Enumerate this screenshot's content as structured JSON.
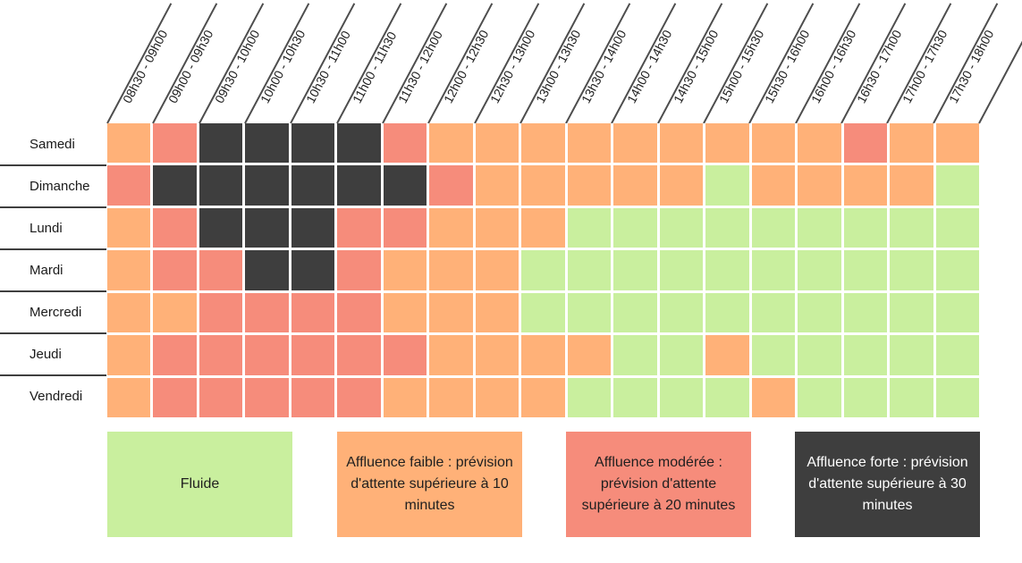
{
  "colors": {
    "fluide": "#C9EF9E",
    "faible": "#FFB178",
    "moderee": "#F68C7B",
    "forte": "#3E3E3E",
    "header_line": "#4D4D4D",
    "row_separator": "#3F3F3F",
    "text_dark": "#1F1F1F",
    "text_light": "#FFFFFF",
    "background": "#FFFFFF"
  },
  "chart_data": {
    "type": "heatmap",
    "title": "",
    "x_categories": [
      "08h30 - 09h00",
      "09h00 - 09h30",
      "09h30 - 10h00",
      "10h00 - 10h30",
      "10h30 - 11h00",
      "11h00 - 11h30",
      "11h30 - 12h00",
      "12h00 - 12h30",
      "12h30 - 13h00",
      "13h00 - 13h30",
      "13h30 - 14h00",
      "14h00 - 14h30",
      "14h30 - 15h00",
      "15h00 - 15h30",
      "15h30 - 16h00",
      "16h00 - 16h30",
      "16h30 - 17h00",
      "17h00 - 17h30",
      "17h30 - 18h00"
    ],
    "y_categories": [
      "Samedi",
      "Dimanche",
      "Lundi",
      "Mardi",
      "Mercredi",
      "Jeudi",
      "Vendredi"
    ],
    "values": [
      [
        1,
        2,
        3,
        3,
        3,
        3,
        2,
        1,
        1,
        1,
        1,
        1,
        1,
        1,
        1,
        1,
        2,
        1,
        1
      ],
      [
        2,
        3,
        3,
        3,
        3,
        3,
        3,
        2,
        1,
        1,
        1,
        1,
        1,
        0,
        1,
        1,
        1,
        1,
        0
      ],
      [
        1,
        2,
        3,
        3,
        3,
        2,
        2,
        1,
        1,
        1,
        0,
        0,
        0,
        0,
        0,
        0,
        0,
        0,
        0
      ],
      [
        1,
        2,
        2,
        3,
        3,
        2,
        1,
        1,
        1,
        0,
        0,
        0,
        0,
        0,
        0,
        0,
        0,
        0,
        0
      ],
      [
        1,
        1,
        2,
        2,
        2,
        2,
        1,
        1,
        1,
        0,
        0,
        0,
        0,
        0,
        0,
        0,
        0,
        0,
        0
      ],
      [
        1,
        2,
        2,
        2,
        2,
        2,
        2,
        1,
        1,
        1,
        1,
        0,
        0,
        1,
        0,
        0,
        0,
        0,
        0
      ],
      [
        1,
        2,
        2,
        2,
        2,
        2,
        1,
        1,
        1,
        1,
        0,
        0,
        0,
        0,
        1,
        0,
        0,
        0,
        0
      ]
    ],
    "levels": [
      {
        "code": 0,
        "name": "fluide",
        "label": "Fluide",
        "color": "#C9EF9E"
      },
      {
        "code": 1,
        "name": "faible",
        "label": "Affluence faible : prévision d'attente supérieure à 10 minutes",
        "color": "#FFB178"
      },
      {
        "code": 2,
        "name": "moderee",
        "label": "Affluence modérée : prévision d'attente supérieure à 20 minutes",
        "color": "#F68C7B"
      },
      {
        "code": 3,
        "name": "forte",
        "label": "Affluence forte : prévision d'attente supérieure à 30 minutes",
        "color": "#3E3E3E"
      }
    ],
    "legend_position": "bottom",
    "grid": true
  },
  "legend": {
    "items": [
      {
        "name": "fluide",
        "label": "Fluide",
        "color": "#C9EF9E",
        "text_color": "#1F1F1F"
      },
      {
        "name": "faible",
        "label": "Affluence faible : prévision d'attente supérieure à 10 minutes",
        "color": "#FFB178",
        "text_color": "#1F1F1F"
      },
      {
        "name": "moderee",
        "label": "Affluence modérée : prévision d'attente supérieure à 20 minutes",
        "color": "#F68C7B",
        "text_color": "#1F1F1F"
      },
      {
        "name": "forte",
        "label": "Affluence forte : prévision d'attente supérieure à 30 minutes",
        "color": "#3E3E3E",
        "text_color": "#FFFFFF"
      }
    ]
  }
}
